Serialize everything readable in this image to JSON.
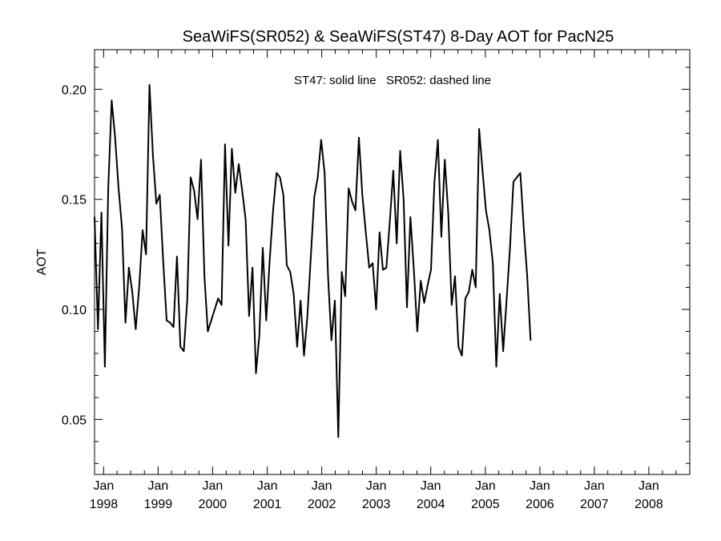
{
  "chart_data": {
    "type": "line",
    "title": "SeaWiFS(SR052) & SeaWiFS(ST47) 8-Day AOT for PacN25",
    "annotation": "ST47: solid line   SR052: dashed line",
    "xlabel": "",
    "ylabel": "AOT",
    "xlim": [
      "1997-11-01",
      "2008-10-01"
    ],
    "ylim": [
      0.025,
      0.218
    ],
    "y_ticks": [
      0.05,
      0.1,
      0.15,
      0.2
    ],
    "y_tick_labels": [
      "0.05",
      "0.10",
      "0.15",
      "0.20"
    ],
    "x_ticks": [
      {
        "date": "1998-01-01",
        "month": "Jan",
        "year": "1998"
      },
      {
        "date": "1999-01-01",
        "month": "Jan",
        "year": "1999"
      },
      {
        "date": "2000-01-01",
        "month": "Jan",
        "year": "2000"
      },
      {
        "date": "2001-01-01",
        "month": "Jan",
        "year": "2001"
      },
      {
        "date": "2002-01-01",
        "month": "Jan",
        "year": "2002"
      },
      {
        "date": "2003-01-01",
        "month": "Jan",
        "year": "2003"
      },
      {
        "date": "2004-01-01",
        "month": "Jan",
        "year": "2004"
      },
      {
        "date": "2005-01-01",
        "month": "Jan",
        "year": "2005"
      },
      {
        "date": "2006-01-01",
        "month": "Jan",
        "year": "2006"
      },
      {
        "date": "2007-01-01",
        "month": "Jan",
        "year": "2007"
      },
      {
        "date": "2008-01-01",
        "month": "Jan",
        "year": "2008"
      }
    ],
    "grid": false,
    "series": [
      {
        "name": "ST47",
        "style": "solid",
        "color": "#000000",
        "points": [
          [
            "1997-11-01",
            0.142
          ],
          [
            "1997-11-24",
            0.091
          ],
          [
            "1997-12-17",
            0.144
          ],
          [
            "1998-01-09",
            0.074
          ],
          [
            "1998-02-01",
            0.155
          ],
          [
            "1998-02-24",
            0.195
          ],
          [
            "1998-03-19",
            0.178
          ],
          [
            "1998-04-11",
            0.155
          ],
          [
            "1998-05-04",
            0.137
          ],
          [
            "1998-05-27",
            0.094
          ],
          [
            "1998-06-19",
            0.119
          ],
          [
            "1998-07-12",
            0.108
          ],
          [
            "1998-08-04",
            0.091
          ],
          [
            "1998-08-27",
            0.11
          ],
          [
            "1998-09-19",
            0.136
          ],
          [
            "1998-10-12",
            0.125
          ],
          [
            "1998-11-04",
            0.202
          ],
          [
            "1998-11-27",
            0.17
          ],
          [
            "1998-12-20",
            0.148
          ],
          [
            "1999-01-12",
            0.152
          ],
          [
            "1999-02-04",
            0.122
          ],
          [
            "1999-02-27",
            0.095
          ],
          [
            "1999-03-22",
            0.094
          ],
          [
            "1999-04-14",
            0.092
          ],
          [
            "1999-05-07",
            0.124
          ],
          [
            "1999-05-30",
            0.083
          ],
          [
            "1999-06-22",
            0.081
          ],
          [
            "1999-07-15",
            0.104
          ],
          [
            "1999-08-07",
            0.16
          ],
          [
            "1999-08-30",
            0.154
          ],
          [
            "1999-09-22",
            0.141
          ],
          [
            "1999-10-15",
            0.168
          ],
          [
            "1999-11-07",
            0.115
          ],
          [
            "1999-11-30",
            0.09
          ],
          [
            "1999-12-23",
            0.095
          ],
          [
            "2000-01-15",
            0.1
          ],
          [
            "2000-02-07",
            0.105
          ],
          [
            "2000-03-01",
            0.102
          ],
          [
            "2000-03-24",
            0.175
          ],
          [
            "2000-04-16",
            0.129
          ],
          [
            "2000-05-09",
            0.173
          ],
          [
            "2000-06-01",
            0.153
          ],
          [
            "2000-06-24",
            0.166
          ],
          [
            "2000-07-17",
            0.154
          ],
          [
            "2000-08-09",
            0.141
          ],
          [
            "2000-09-01",
            0.097
          ],
          [
            "2000-09-24",
            0.119
          ],
          [
            "2000-10-17",
            0.071
          ],
          [
            "2000-11-09",
            0.088
          ],
          [
            "2000-12-02",
            0.128
          ],
          [
            "2000-12-25",
            0.095
          ],
          [
            "2001-01-17",
            0.122
          ],
          [
            "2001-02-09",
            0.145
          ],
          [
            "2001-03-04",
            0.162
          ],
          [
            "2001-03-27",
            0.16
          ],
          [
            "2001-04-19",
            0.152
          ],
          [
            "2001-05-12",
            0.12
          ],
          [
            "2001-06-04",
            0.117
          ],
          [
            "2001-06-27",
            0.107
          ],
          [
            "2001-07-20",
            0.083
          ],
          [
            "2001-08-12",
            0.104
          ],
          [
            "2001-09-04",
            0.079
          ],
          [
            "2001-09-27",
            0.097
          ],
          [
            "2001-10-20",
            0.124
          ],
          [
            "2001-11-12",
            0.151
          ],
          [
            "2001-12-05",
            0.16
          ],
          [
            "2001-12-28",
            0.177
          ],
          [
            "2002-01-20",
            0.162
          ],
          [
            "2002-02-12",
            0.115
          ],
          [
            "2002-03-07",
            0.086
          ],
          [
            "2002-03-30",
            0.104
          ],
          [
            "2002-04-22",
            0.042
          ],
          [
            "2002-05-15",
            0.117
          ],
          [
            "2002-06-07",
            0.106
          ],
          [
            "2002-06-30",
            0.155
          ],
          [
            "2002-07-23",
            0.149
          ],
          [
            "2002-08-15",
            0.145
          ],
          [
            "2002-09-07",
            0.178
          ],
          [
            "2002-09-30",
            0.152
          ],
          [
            "2002-10-23",
            0.135
          ],
          [
            "2002-11-15",
            0.119
          ],
          [
            "2002-12-08",
            0.121
          ],
          [
            "2002-12-31",
            0.1
          ],
          [
            "2003-01-23",
            0.135
          ],
          [
            "2003-02-15",
            0.118
          ],
          [
            "2003-03-10",
            0.119
          ],
          [
            "2003-04-02",
            0.14
          ],
          [
            "2003-04-25",
            0.163
          ],
          [
            "2003-05-18",
            0.13
          ],
          [
            "2003-06-10",
            0.172
          ],
          [
            "2003-07-03",
            0.15
          ],
          [
            "2003-07-26",
            0.101
          ],
          [
            "2003-08-18",
            0.142
          ],
          [
            "2003-09-10",
            0.118
          ],
          [
            "2003-10-03",
            0.09
          ],
          [
            "2003-10-26",
            0.113
          ],
          [
            "2003-11-18",
            0.103
          ],
          [
            "2003-12-11",
            0.111
          ],
          [
            "2004-01-03",
            0.118
          ],
          [
            "2004-01-26",
            0.158
          ],
          [
            "2004-02-18",
            0.177
          ],
          [
            "2004-03-12",
            0.133
          ],
          [
            "2004-04-04",
            0.168
          ],
          [
            "2004-04-27",
            0.144
          ],
          [
            "2004-05-20",
            0.102
          ],
          [
            "2004-06-12",
            0.115
          ],
          [
            "2004-07-05",
            0.083
          ],
          [
            "2004-07-28",
            0.079
          ],
          [
            "2004-08-20",
            0.105
          ],
          [
            "2004-09-12",
            0.108
          ],
          [
            "2004-10-05",
            0.118
          ],
          [
            "2004-10-28",
            0.11
          ],
          [
            "2004-11-20",
            0.182
          ],
          [
            "2004-12-13",
            0.163
          ],
          [
            "2005-01-05",
            0.145
          ],
          [
            "2005-01-28",
            0.136
          ],
          [
            "2005-02-20",
            0.121
          ],
          [
            "2005-03-15",
            0.074
          ],
          [
            "2005-04-07",
            0.107
          ],
          [
            "2005-04-30",
            0.081
          ],
          [
            "2005-05-23",
            0.104
          ],
          [
            "2005-06-15",
            0.128
          ],
          [
            "2005-07-08",
            0.158
          ],
          [
            "2005-07-31",
            0.16
          ],
          [
            "2005-08-23",
            0.162
          ],
          [
            "2005-09-15",
            0.137
          ],
          [
            "2005-10-08",
            0.115
          ],
          [
            "2005-10-31",
            0.086
          ]
        ]
      }
    ]
  }
}
